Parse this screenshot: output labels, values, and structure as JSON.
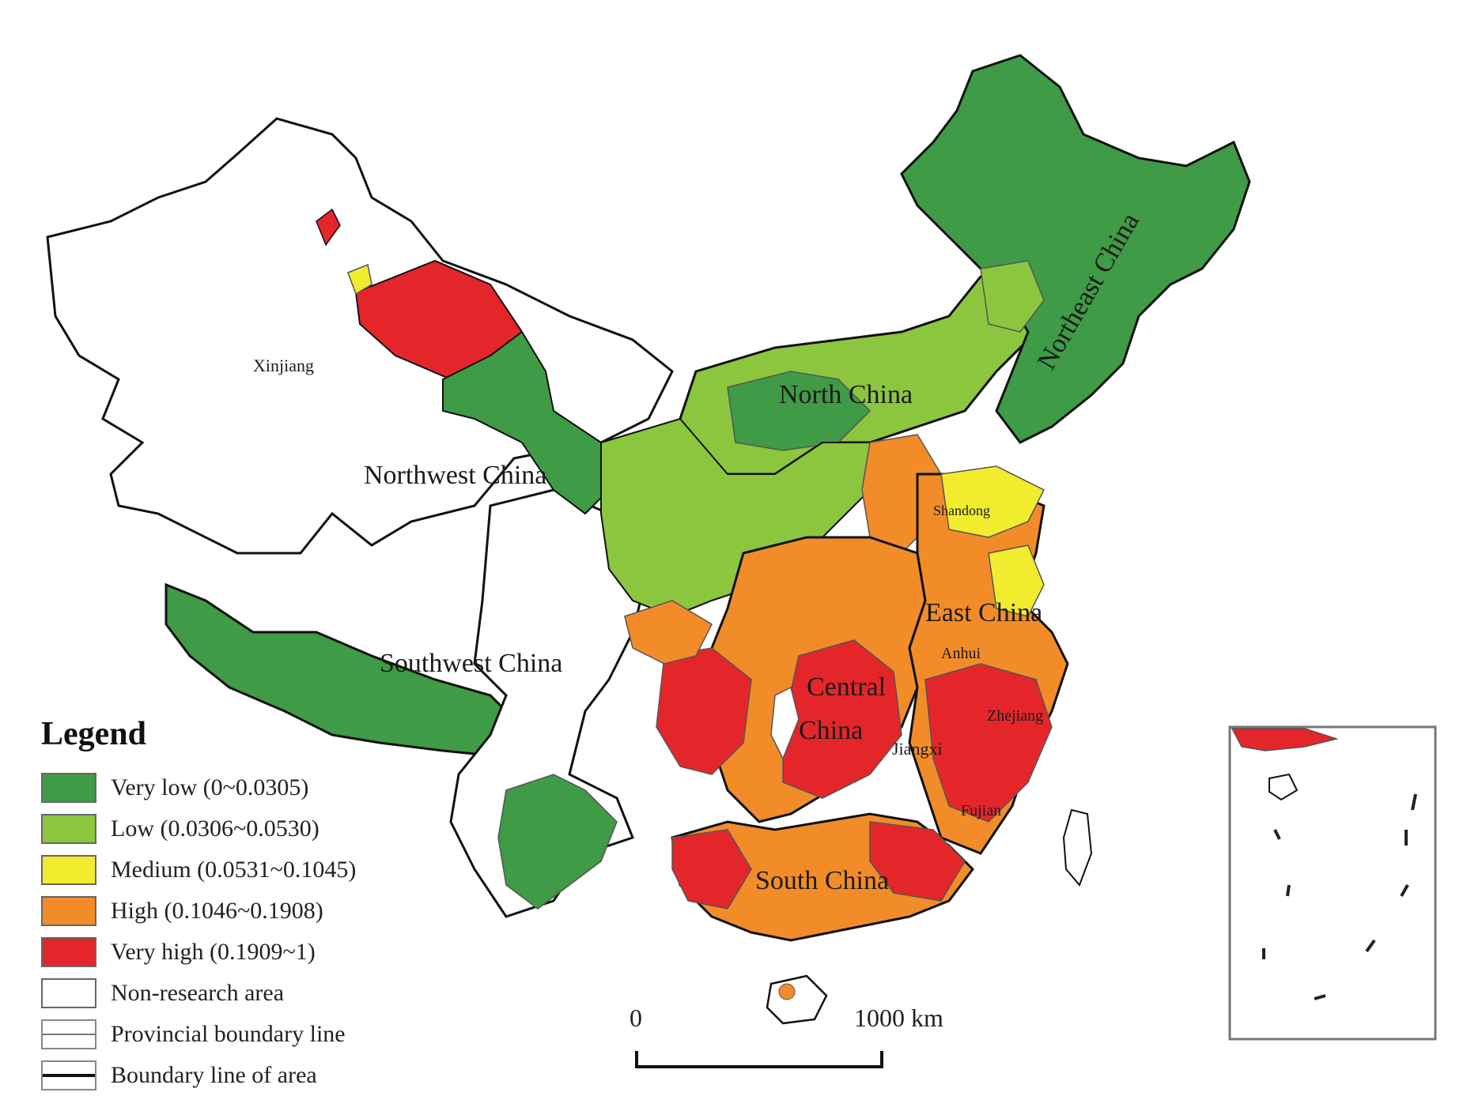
{
  "colors": {
    "very_low": "#3f9b45",
    "low": "#8cc63f",
    "medium": "#f2ec2e",
    "high": "#f28c28",
    "very_high": "#e4262a",
    "non_research": "#ffffff",
    "boundary": "#111111",
    "provincial": "#8a8a8a"
  },
  "regions": {
    "northeast": "Northeast China",
    "north": "North China",
    "northwest": "Northwest China",
    "southwest": "Southwest China",
    "east": "East China",
    "central_line1": "Central",
    "central_line2": "China",
    "south": "South China",
    "xinjiang": "Xinjiang",
    "anhui": "Anhui",
    "jiangxi": "Jiangxi",
    "zhejiang": "Zhejiang",
    "fujian": "Fujian",
    "shandong": "Shandong"
  },
  "legend": {
    "title": "Legend",
    "items": [
      {
        "key": "very_low",
        "label": "Very low (0~0.0305)"
      },
      {
        "key": "low",
        "label": "Low (0.0306~0.0530)"
      },
      {
        "key": "medium",
        "label": "Medium (0.0531~0.1045)"
      },
      {
        "key": "high",
        "label": "High (0.1046~0.1908)"
      },
      {
        "key": "very_high",
        "label": "Very high (0.1909~1)"
      },
      {
        "key": "non_research",
        "label": "Non-research area"
      }
    ],
    "provincial_line": "Provincial boundary line",
    "area_line": "Boundary line of area"
  },
  "scale": {
    "start": "0",
    "end": "1000 km"
  }
}
